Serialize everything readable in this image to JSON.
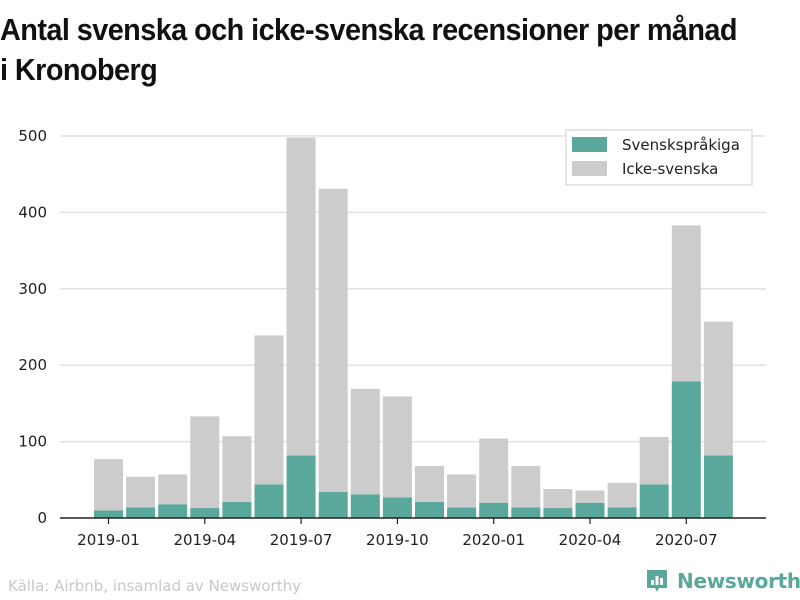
{
  "title": "Antal svenska och icke-svenska recensioner per månad i Kronoberg",
  "source": "Källa: Airbnb, insamlad av Newsworthy",
  "logo_text": "Newsworthy",
  "chart_data": {
    "type": "bar",
    "stacked": true,
    "categories": [
      "2019-01",
      "2019-02",
      "2019-03",
      "2019-04",
      "2019-05",
      "2019-06",
      "2019-07",
      "2019-08",
      "2019-09",
      "2019-10",
      "2019-11",
      "2019-12",
      "2020-01",
      "2020-02",
      "2020-03",
      "2020-04",
      "2020-05",
      "2020-06",
      "2020-07",
      "2020-08"
    ],
    "x_tick_labels": [
      "2019-01",
      "2019-04",
      "2019-07",
      "2019-10",
      "2020-01",
      "2020-04",
      "2020-07"
    ],
    "series": [
      {
        "name": "Svenskspråkiga",
        "color": "#5aa89b",
        "values": [
          10,
          14,
          18,
          13,
          21,
          44,
          82,
          34,
          31,
          27,
          21,
          14,
          20,
          14,
          13,
          20,
          14,
          44,
          179,
          82
        ]
      },
      {
        "name": "Icke-svenska",
        "color": "#cccccc",
        "values": [
          67,
          40,
          39,
          120,
          86,
          195,
          416,
          397,
          138,
          132,
          47,
          43,
          84,
          54,
          25,
          16,
          32,
          62,
          204,
          175
        ]
      }
    ],
    "ylim": [
      0,
      500
    ],
    "yticks": [
      0,
      100,
      200,
      300,
      400,
      500
    ],
    "grid": true,
    "legend": "top-right"
  }
}
